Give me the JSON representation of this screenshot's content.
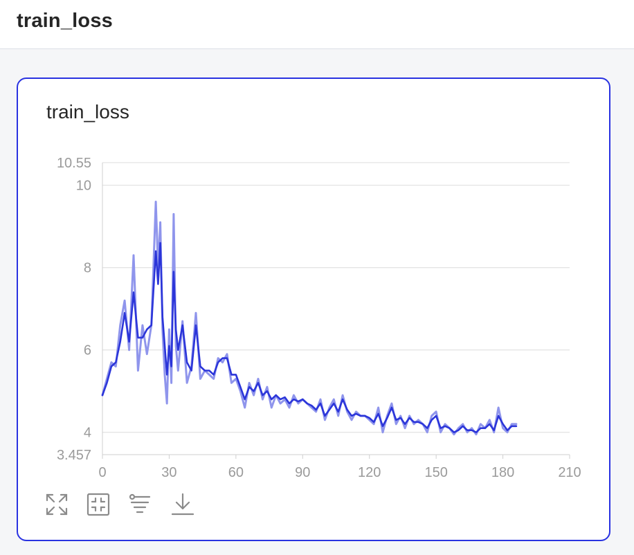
{
  "page": {
    "title": "train_loss"
  },
  "card": {
    "title": "train_loss",
    "toolbar": [
      {
        "name": "fullscreen-icon",
        "label": "fullscreen"
      },
      {
        "name": "restore-icon",
        "label": "restore"
      },
      {
        "name": "filter-icon",
        "label": "filter"
      },
      {
        "name": "download-icon",
        "label": "download"
      }
    ]
  },
  "colors": {
    "accent": "#2932e1",
    "raw_line": "#8f95ec",
    "smooth_line": "#2b35d9",
    "grid": "#dcdcdc",
    "tick": "#9a9a9a"
  },
  "chart_data": {
    "type": "line",
    "title": "train_loss",
    "xlim": [
      0,
      210
    ],
    "ylim": [
      3.457,
      10.55
    ],
    "x_ticks": [
      0,
      30,
      60,
      90,
      120,
      150,
      180,
      210
    ],
    "y_ticks": [
      3.457,
      4,
      6,
      8,
      10,
      10.55
    ],
    "y_tick_labels": [
      "3.457",
      "4",
      "6",
      "8",
      "10",
      "10.55"
    ],
    "grid": true,
    "series": [
      {
        "role": "raw",
        "x": [
          0,
          2,
          4,
          6,
          8,
          10,
          12,
          14,
          16,
          18,
          20,
          22,
          24,
          25,
          26,
          27,
          28,
          29,
          30,
          31,
          32,
          33,
          34,
          36,
          38,
          40,
          42,
          44,
          46,
          48,
          50,
          52,
          54,
          56,
          58,
          60,
          62,
          64,
          66,
          68,
          70,
          72,
          74,
          76,
          78,
          80,
          82,
          84,
          86,
          88,
          90,
          92,
          94,
          96,
          98,
          100,
          102,
          104,
          106,
          108,
          110,
          112,
          114,
          116,
          118,
          120,
          122,
          124,
          126,
          128,
          130,
          132,
          134,
          136,
          138,
          140,
          142,
          144,
          146,
          148,
          150,
          152,
          154,
          156,
          158,
          160,
          162,
          164,
          166,
          168,
          170,
          172,
          174,
          176,
          178,
          180,
          182,
          184,
          186
        ],
        "y": [
          4.9,
          5.3,
          5.7,
          5.6,
          6.6,
          7.2,
          6.0,
          8.3,
          5.5,
          6.6,
          5.9,
          6.6,
          9.6,
          8.0,
          9.1,
          6.5,
          5.4,
          4.7,
          6.5,
          5.2,
          9.3,
          6.1,
          5.5,
          6.7,
          5.2,
          5.6,
          6.9,
          5.3,
          5.5,
          5.4,
          5.3,
          5.8,
          5.7,
          5.9,
          5.2,
          5.3,
          5.0,
          4.6,
          5.2,
          4.9,
          5.3,
          4.8,
          5.1,
          4.6,
          4.9,
          4.7,
          4.8,
          4.6,
          4.9,
          4.7,
          4.8,
          4.7,
          4.6,
          4.5,
          4.8,
          4.3,
          4.6,
          4.8,
          4.4,
          4.9,
          4.5,
          4.3,
          4.5,
          4.4,
          4.4,
          4.3,
          4.2,
          4.6,
          4.0,
          4.4,
          4.7,
          4.2,
          4.4,
          4.1,
          4.4,
          4.2,
          4.3,
          4.2,
          4.0,
          4.4,
          4.5,
          4.0,
          4.2,
          4.1,
          3.95,
          4.1,
          4.2,
          4.0,
          4.1,
          3.95,
          4.2,
          4.1,
          4.3,
          4.0,
          4.6,
          4.1,
          4.0,
          4.2,
          4.2
        ]
      },
      {
        "role": "smoothed",
        "x": [
          0,
          2,
          4,
          6,
          8,
          10,
          12,
          14,
          16,
          18,
          20,
          22,
          24,
          25,
          26,
          27,
          28,
          29,
          30,
          31,
          32,
          33,
          34,
          36,
          38,
          40,
          42,
          44,
          46,
          48,
          50,
          52,
          54,
          56,
          58,
          60,
          62,
          64,
          66,
          68,
          70,
          72,
          74,
          76,
          78,
          80,
          82,
          84,
          86,
          88,
          90,
          92,
          94,
          96,
          98,
          100,
          102,
          104,
          106,
          108,
          110,
          112,
          114,
          116,
          118,
          120,
          122,
          124,
          126,
          128,
          130,
          132,
          134,
          136,
          138,
          140,
          142,
          144,
          146,
          148,
          150,
          152,
          154,
          156,
          158,
          160,
          162,
          164,
          166,
          168,
          170,
          172,
          174,
          176,
          178,
          180,
          182,
          184,
          186
        ],
        "y": [
          4.9,
          5.2,
          5.6,
          5.7,
          6.2,
          6.9,
          6.2,
          7.4,
          6.3,
          6.3,
          6.5,
          6.6,
          8.4,
          7.6,
          8.6,
          6.8,
          6.1,
          5.4,
          6.1,
          5.6,
          7.9,
          6.5,
          6.0,
          6.6,
          5.7,
          5.5,
          6.6,
          5.6,
          5.5,
          5.5,
          5.4,
          5.7,
          5.8,
          5.8,
          5.4,
          5.4,
          5.1,
          4.8,
          5.1,
          5.0,
          5.2,
          4.9,
          5.0,
          4.8,
          4.9,
          4.8,
          4.85,
          4.7,
          4.8,
          4.75,
          4.8,
          4.7,
          4.65,
          4.55,
          4.7,
          4.4,
          4.55,
          4.7,
          4.5,
          4.8,
          4.55,
          4.4,
          4.45,
          4.4,
          4.4,
          4.35,
          4.25,
          4.45,
          4.15,
          4.35,
          4.6,
          4.3,
          4.35,
          4.2,
          4.35,
          4.25,
          4.25,
          4.2,
          4.1,
          4.3,
          4.4,
          4.1,
          4.15,
          4.1,
          4.0,
          4.05,
          4.15,
          4.05,
          4.05,
          4.0,
          4.1,
          4.1,
          4.2,
          4.05,
          4.4,
          4.2,
          4.05,
          4.15,
          4.15
        ]
      }
    ]
  }
}
